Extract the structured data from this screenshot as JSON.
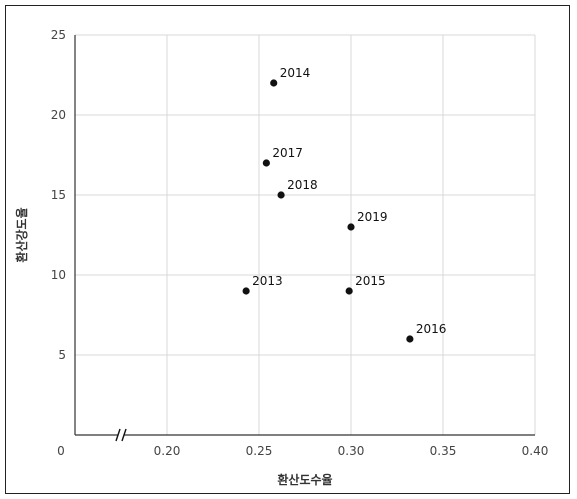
{
  "chart_data": {
    "type": "scatter",
    "title": "",
    "xlabel": "환산도수율",
    "ylabel": "환산강도율",
    "xlim": [
      0,
      0.4
    ],
    "ylim": [
      0,
      25
    ],
    "x_tick_labels": [
      "0",
      "0.20",
      "0.25",
      "0.30",
      "0.35",
      "0.40"
    ],
    "y_tick_labels": [
      "5",
      "10",
      "15",
      "20",
      "25"
    ],
    "y_origin_label": "0",
    "axis_break": true,
    "grid": true,
    "points": [
      {
        "label": "2013",
        "x": 0.243,
        "y": 9
      },
      {
        "label": "2014",
        "x": 0.258,
        "y": 22
      },
      {
        "label": "2015",
        "x": 0.299,
        "y": 9
      },
      {
        "label": "2016",
        "x": 0.332,
        "y": 6
      },
      {
        "label": "2017",
        "x": 0.254,
        "y": 17
      },
      {
        "label": "2018",
        "x": 0.262,
        "y": 15
      },
      {
        "label": "2019",
        "x": 0.3,
        "y": 13
      }
    ],
    "colors": {
      "point": "#111111",
      "grid": "#d9d9d9",
      "axis": "#333333"
    }
  }
}
